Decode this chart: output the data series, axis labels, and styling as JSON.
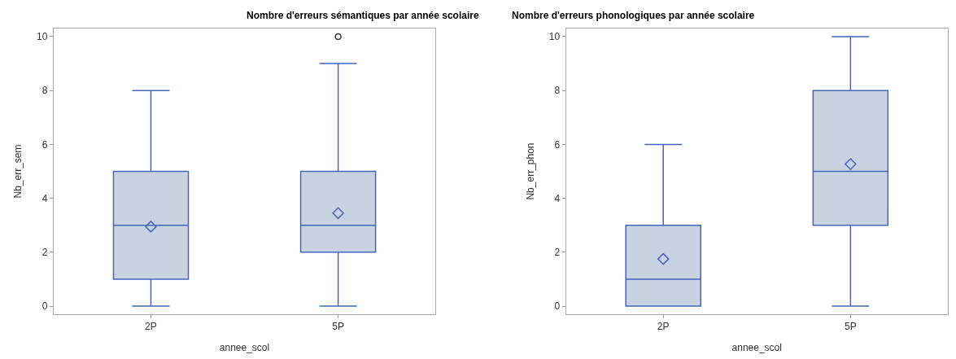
{
  "chart_data": [
    {
      "type": "box",
      "title": "Nombre d'erreurs sémantiques par année scolaire",
      "xlabel": "annee_scol",
      "ylabel": "Nb_err_sem",
      "categories": [
        "2P",
        "5P"
      ],
      "ylim": [
        -0.3,
        10.3
      ],
      "yticks": [
        0,
        2,
        4,
        6,
        8,
        10
      ],
      "color": "#c8d3e2",
      "boxes": [
        {
          "low": 0,
          "q1": 1,
          "median": 3,
          "q3": 5,
          "high": 8,
          "mean": 2.95
        },
        {
          "low": 0,
          "q1": 2,
          "median": 3,
          "q3": 5,
          "high": 9,
          "mean": 3.45,
          "outliers": [
            10
          ]
        }
      ]
    },
    {
      "type": "box",
      "title": "Nombre d'erreurs phonologiques par année scolaire",
      "xlabel": "annee_scol",
      "ylabel": "Nb_err_phon",
      "categories": [
        "2P",
        "5P"
      ],
      "ylim": [
        -0.3,
        10.3
      ],
      "yticks": [
        0,
        2,
        4,
        6,
        8,
        10
      ],
      "color": "#c8d3e2",
      "boxes": [
        {
          "low": 0,
          "q1": 0,
          "median": 1,
          "q3": 3,
          "high": 6,
          "mean": 1.75
        },
        {
          "low": 0,
          "q1": 3,
          "median": 5,
          "q3": 8,
          "high": 10,
          "mean": 5.27
        }
      ]
    }
  ]
}
